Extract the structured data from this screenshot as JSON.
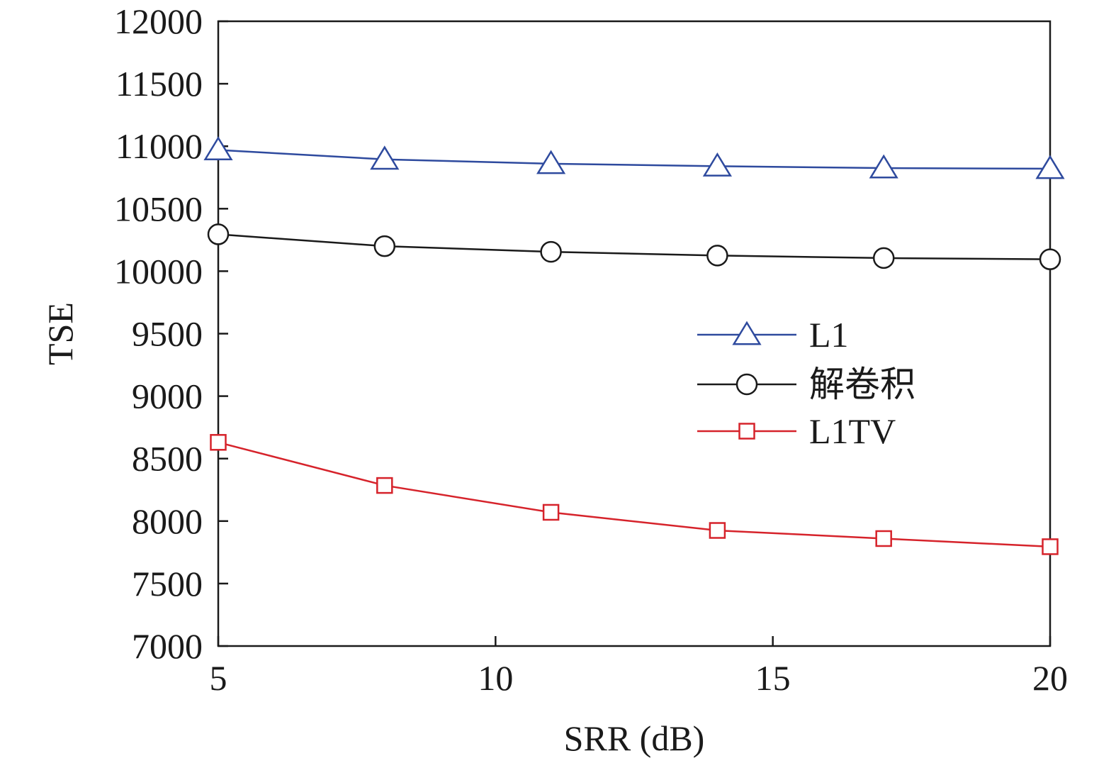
{
  "chart_data": {
    "type": "line",
    "title": "",
    "xlabel": "SRR (dB)",
    "ylabel": "TSE",
    "xlim": [
      5,
      20
    ],
    "ylim": [
      7000,
      12000
    ],
    "xticks": [
      5,
      10,
      15,
      20
    ],
    "yticks": [
      7000,
      7500,
      8000,
      8500,
      9000,
      9500,
      10000,
      10500,
      11000,
      11500,
      12000
    ],
    "x": [
      5,
      8,
      11,
      14,
      17,
      20
    ],
    "grid": false,
    "legend_position": "center-right",
    "series": [
      {
        "name": "L1",
        "marker": "triangle",
        "color": "#2e4a9e",
        "values": [
          10970,
          10895,
          10860,
          10840,
          10825,
          10820
        ]
      },
      {
        "name": "解卷积",
        "marker": "circle",
        "color": "#1a1a1a",
        "values": [
          10295,
          10200,
          10155,
          10125,
          10105,
          10095
        ]
      },
      {
        "name": "L1TV",
        "marker": "square",
        "color": "#d6232b",
        "values": [
          8630,
          8285,
          8070,
          7925,
          7860,
          7795
        ]
      }
    ]
  }
}
